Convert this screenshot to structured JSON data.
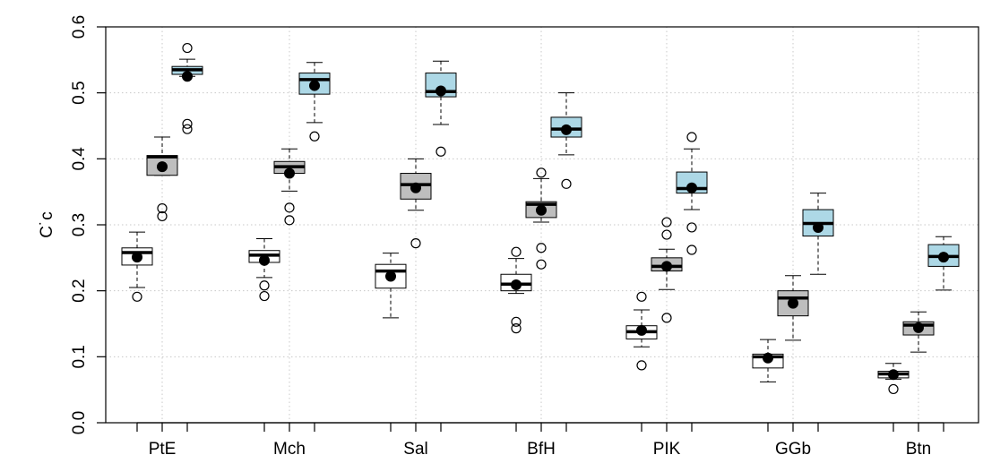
{
  "chart_data": {
    "type": "boxplot",
    "ylabel": "C˙c",
    "ylim": [
      0.0,
      0.6
    ],
    "yticks": [
      "0.0",
      "0.1",
      "0.2",
      "0.3",
      "0.4",
      "0.5",
      "0.6"
    ],
    "grid": true,
    "categories": [
      "PtE",
      "Mch",
      "Sal",
      "BfH",
      "PIK",
      "GGb",
      "Btn"
    ],
    "series_colors": [
      "#ffffff",
      "#bebebe",
      "#add8e6"
    ],
    "groups": [
      {
        "category": "PtE",
        "boxes": [
          {
            "whisker_low": 0.205,
            "q1": 0.239,
            "median": 0.258,
            "q3": 0.265,
            "whisker_high": 0.289,
            "mean": 0.251,
            "outliers": [
              0.191
            ]
          },
          {
            "whisker_low": 0.375,
            "q1": 0.375,
            "median": 0.403,
            "q3": 0.405,
            "whisker_high": 0.433,
            "mean": 0.388,
            "outliers": [
              0.325,
              0.313
            ]
          },
          {
            "whisker_low": 0.525,
            "q1": 0.528,
            "median": 0.535,
            "q3": 0.54,
            "whisker_high": 0.551,
            "mean": 0.525,
            "outliers": [
              0.568,
              0.453,
              0.445
            ]
          }
        ]
      },
      {
        "category": "Mch",
        "boxes": [
          {
            "whisker_low": 0.22,
            "q1": 0.243,
            "median": 0.254,
            "q3": 0.261,
            "whisker_high": 0.279,
            "mean": 0.246,
            "outliers": [
              0.208,
              0.192
            ]
          },
          {
            "whisker_low": 0.351,
            "q1": 0.378,
            "median": 0.388,
            "q3": 0.396,
            "whisker_high": 0.415,
            "mean": 0.378,
            "outliers": [
              0.326,
              0.307
            ]
          },
          {
            "whisker_low": 0.455,
            "q1": 0.498,
            "median": 0.52,
            "q3": 0.53,
            "whisker_high": 0.546,
            "mean": 0.511,
            "outliers": [
              0.434
            ]
          }
        ]
      },
      {
        "category": "Sal",
        "boxes": [
          {
            "whisker_low": 0.159,
            "q1": 0.204,
            "median": 0.23,
            "q3": 0.24,
            "whisker_high": 0.257,
            "mean": 0.222,
            "outliers": []
          },
          {
            "whisker_low": 0.322,
            "q1": 0.339,
            "median": 0.361,
            "q3": 0.378,
            "whisker_high": 0.4,
            "mean": 0.356,
            "outliers": [
              0.272
            ]
          },
          {
            "whisker_low": 0.452,
            "q1": 0.494,
            "median": 0.502,
            "q3": 0.53,
            "whisker_high": 0.548,
            "mean": 0.503,
            "outliers": [
              0.411
            ]
          }
        ]
      },
      {
        "category": "BfH",
        "boxes": [
          {
            "whisker_low": 0.196,
            "q1": 0.2,
            "median": 0.21,
            "q3": 0.225,
            "whisker_high": 0.249,
            "mean": 0.209,
            "outliers": [
              0.259,
              0.153,
              0.143
            ]
          },
          {
            "whisker_low": 0.304,
            "q1": 0.311,
            "median": 0.331,
            "q3": 0.335,
            "whisker_high": 0.37,
            "mean": 0.322,
            "outliers": [
              0.379,
              0.265,
              0.24
            ]
          },
          {
            "whisker_low": 0.406,
            "q1": 0.433,
            "median": 0.445,
            "q3": 0.463,
            "whisker_high": 0.5,
            "mean": 0.444,
            "outliers": [
              0.362
            ]
          }
        ]
      },
      {
        "category": "PIK",
        "boxes": [
          {
            "whisker_low": 0.115,
            "q1": 0.127,
            "median": 0.138,
            "q3": 0.147,
            "whisker_high": 0.171,
            "mean": 0.14,
            "outliers": [
              0.191,
              0.087
            ]
          },
          {
            "whisker_low": 0.202,
            "q1": 0.23,
            "median": 0.237,
            "q3": 0.25,
            "whisker_high": 0.263,
            "mean": 0.237,
            "outliers": [
              0.304,
              0.285,
              0.159
            ]
          },
          {
            "whisker_low": 0.323,
            "q1": 0.348,
            "median": 0.355,
            "q3": 0.38,
            "whisker_high": 0.415,
            "mean": 0.356,
            "outliers": [
              0.433,
              0.296,
              0.262
            ]
          }
        ]
      },
      {
        "category": "GGb",
        "boxes": [
          {
            "whisker_low": 0.062,
            "q1": 0.083,
            "median": 0.1,
            "q3": 0.104,
            "whisker_high": 0.126,
            "mean": 0.098,
            "outliers": []
          },
          {
            "whisker_low": 0.125,
            "q1": 0.162,
            "median": 0.189,
            "q3": 0.2,
            "whisker_high": 0.223,
            "mean": 0.181,
            "outliers": []
          },
          {
            "whisker_low": 0.225,
            "q1": 0.283,
            "median": 0.302,
            "q3": 0.323,
            "whisker_high": 0.348,
            "mean": 0.296,
            "outliers": []
          }
        ]
      },
      {
        "category": "Btn",
        "boxes": [
          {
            "whisker_low": 0.066,
            "q1": 0.068,
            "median": 0.074,
            "q3": 0.078,
            "whisker_high": 0.09,
            "mean": 0.073,
            "outliers": [
              0.051
            ]
          },
          {
            "whisker_low": 0.107,
            "q1": 0.133,
            "median": 0.148,
            "q3": 0.153,
            "whisker_high": 0.168,
            "mean": 0.144,
            "outliers": []
          },
          {
            "whisker_low": 0.201,
            "q1": 0.237,
            "median": 0.252,
            "q3": 0.27,
            "whisker_high": 0.282,
            "mean": 0.251,
            "outliers": []
          }
        ]
      }
    ]
  }
}
